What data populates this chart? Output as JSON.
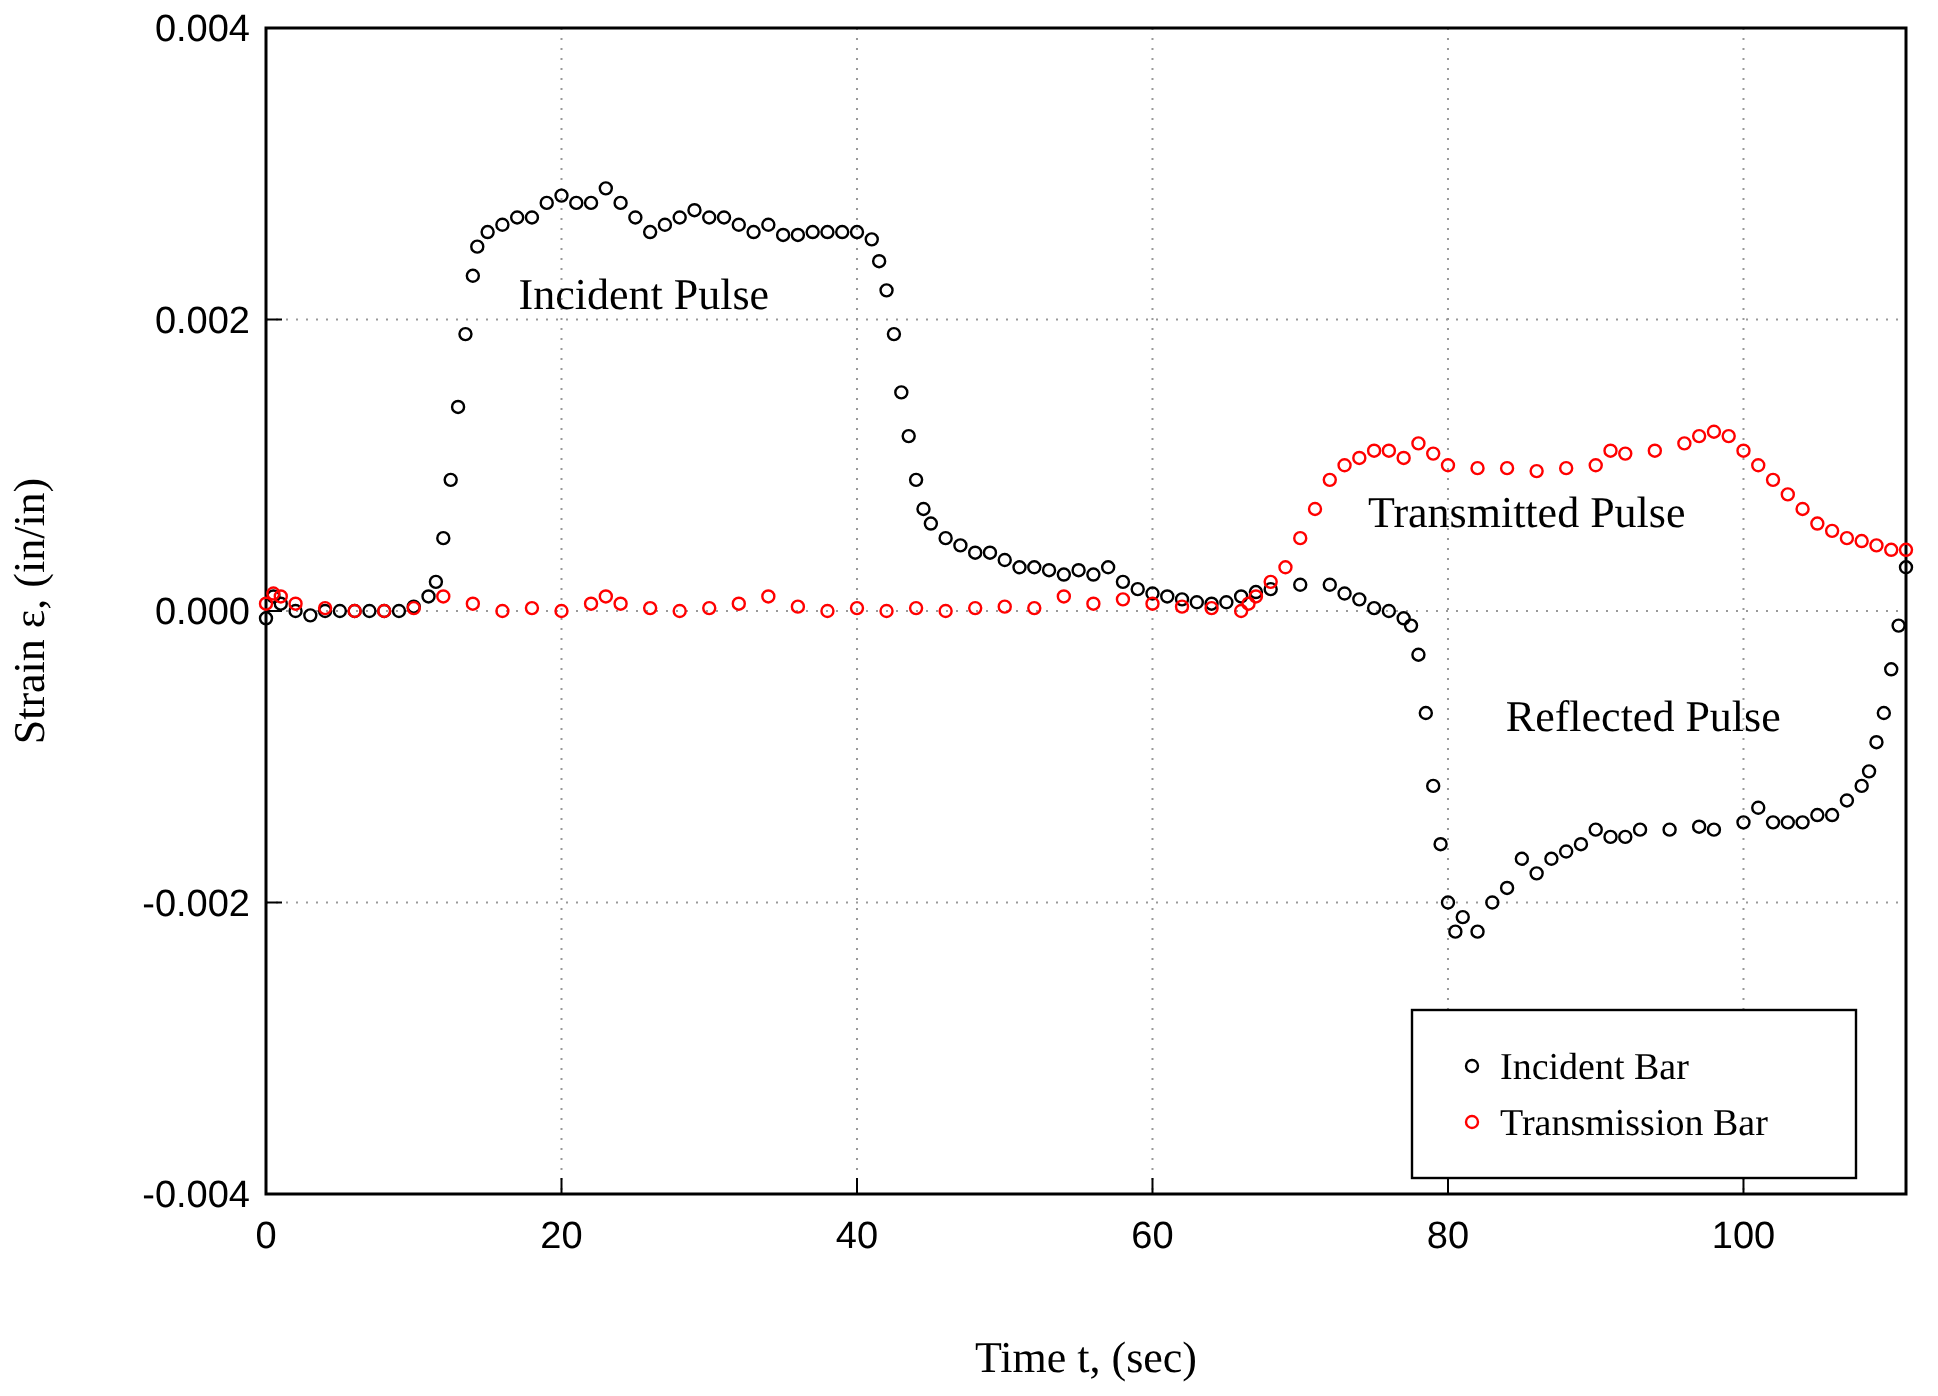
{
  "chart_data": {
    "type": "scatter",
    "xlabel": "Time t, (sec)",
    "ylabel": "Strain ε, (in/in)",
    "xlim": [
      0,
      111
    ],
    "xticks": [
      0,
      20,
      40,
      60,
      80,
      100
    ],
    "ylim": [
      -0.004,
      0.004
    ],
    "yticks": [
      {
        "value": -0.004,
        "label": "-0.004"
      },
      {
        "value": -0.002,
        "label": "-0.002"
      },
      {
        "value": 0,
        "label": "0.000"
      },
      0.002,
      0.004
    ],
    "grid": true,
    "legend": "bottom right",
    "marker": "circle",
    "annotations": [
      "Incident Pulse",
      "Transmitted Pulse",
      "Reflected Pulse"
    ],
    "series": [
      {
        "name": "Incident Bar",
        "color": "#000000",
        "x": [
          0,
          0.5,
          1,
          2,
          3,
          4,
          5,
          6,
          7,
          8,
          9,
          10,
          11,
          11.5,
          12,
          12.5,
          13,
          13.5,
          14,
          14.3,
          15,
          16,
          17,
          18,
          19,
          20,
          21,
          22,
          23,
          24,
          25,
          26,
          27,
          28,
          29,
          30,
          31,
          32,
          33,
          34,
          35,
          36,
          37,
          38,
          39,
          40,
          41,
          41.5,
          42,
          42.5,
          43,
          43.5,
          44,
          44.5,
          45,
          46,
          47,
          48,
          49,
          50,
          51,
          52,
          53,
          54,
          55,
          56,
          57,
          58,
          59,
          60,
          61,
          62,
          63,
          64,
          65,
          66,
          67,
          68,
          70,
          72,
          73,
          74,
          75,
          76,
          77,
          77.5,
          78,
          78.5,
          79,
          79.5,
          80,
          80.5,
          81,
          82,
          83,
          84,
          85,
          86,
          87,
          88,
          89,
          90,
          91,
          92,
          93,
          95,
          97,
          98,
          100,
          101,
          102,
          103,
          104,
          105,
          106,
          107,
          108,
          108.5,
          109,
          109.5,
          110,
          110.5,
          111
        ],
        "values": [
          -5e-05,
          0.0001,
          5e-05,
          0,
          -3e-05,
          0,
          0,
          0,
          0,
          0,
          0,
          3e-05,
          0.0001,
          0.0002,
          0.0005,
          0.0009,
          0.0014,
          0.0019,
          0.0023,
          0.0025,
          0.0026,
          0.00265,
          0.0027,
          0.0027,
          0.0028,
          0.00285,
          0.0028,
          0.0028,
          0.0029,
          0.0028,
          0.0027,
          0.0026,
          0.00265,
          0.0027,
          0.00275,
          0.0027,
          0.0027,
          0.00265,
          0.0026,
          0.00265,
          0.00258,
          0.00258,
          0.0026,
          0.0026,
          0.0026,
          0.0026,
          0.00255,
          0.0024,
          0.0022,
          0.0019,
          0.0015,
          0.0012,
          0.0009,
          0.0007,
          0.0006,
          0.0005,
          0.00045,
          0.0004,
          0.0004,
          0.00035,
          0.0003,
          0.0003,
          0.00028,
          0.00025,
          0.00028,
          0.00025,
          0.0003,
          0.0002,
          0.00015,
          0.00012,
          0.0001,
          8e-05,
          6e-05,
          5e-05,
          6e-05,
          0.0001,
          0.00013,
          0.00015,
          0.00018,
          0.00018,
          0.00012,
          8e-05,
          2e-05,
          0,
          -5e-05,
          -0.0001,
          -0.0003,
          -0.0007,
          -0.0012,
          -0.0016,
          -0.002,
          -0.0022,
          -0.0021,
          -0.0022,
          -0.002,
          -0.0019,
          -0.0017,
          -0.0018,
          -0.0017,
          -0.00165,
          -0.0016,
          -0.0015,
          -0.00155,
          -0.00155,
          -0.0015,
          -0.0015,
          -0.00148,
          -0.0015,
          -0.00145,
          -0.00135,
          -0.00145,
          -0.00145,
          -0.00145,
          -0.0014,
          -0.0014,
          -0.0013,
          -0.0012,
          -0.0011,
          -0.0009,
          -0.0007,
          -0.0004,
          -0.0001,
          0.0003
        ]
      },
      {
        "name": "Transmission Bar",
        "color": "#ff0000",
        "x": [
          0,
          0.5,
          1,
          2,
          4,
          6,
          8,
          10,
          12,
          14,
          16,
          18,
          20,
          22,
          23,
          24,
          26,
          28,
          30,
          32,
          34,
          36,
          38,
          40,
          42,
          44,
          46,
          48,
          50,
          52,
          54,
          56,
          58,
          60,
          62,
          64,
          66,
          66.5,
          67,
          68,
          69,
          70,
          71,
          72,
          73,
          74,
          75,
          76,
          77,
          78,
          79,
          80,
          82,
          84,
          86,
          88,
          90,
          91,
          92,
          94,
          96,
          97,
          98,
          99,
          100,
          101,
          102,
          103,
          104,
          105,
          106,
          107,
          108,
          109,
          110,
          111
        ],
        "values": [
          5e-05,
          0.00012,
          0.0001,
          5e-05,
          2e-05,
          0,
          0,
          2e-05,
          0.0001,
          5e-05,
          0,
          2e-05,
          0,
          5e-05,
          0.0001,
          5e-05,
          2e-05,
          0,
          2e-05,
          5e-05,
          0.0001,
          3e-05,
          0,
          2e-05,
          0,
          2e-05,
          0,
          2e-05,
          3e-05,
          2e-05,
          0.0001,
          5e-05,
          8e-05,
          5e-05,
          3e-05,
          2e-05,
          0,
          5e-05,
          0.0001,
          0.0002,
          0.0003,
          0.0005,
          0.0007,
          0.0009,
          0.001,
          0.00105,
          0.0011,
          0.0011,
          0.00105,
          0.00115,
          0.00108,
          0.001,
          0.00098,
          0.00098,
          0.00096,
          0.00098,
          0.001,
          0.0011,
          0.00108,
          0.0011,
          0.00115,
          0.0012,
          0.00123,
          0.0012,
          0.0011,
          0.001,
          0.0009,
          0.0008,
          0.0007,
          0.0006,
          0.00055,
          0.0005,
          0.00048,
          0.00045,
          0.00042,
          0.00042
        ]
      }
    ]
  }
}
